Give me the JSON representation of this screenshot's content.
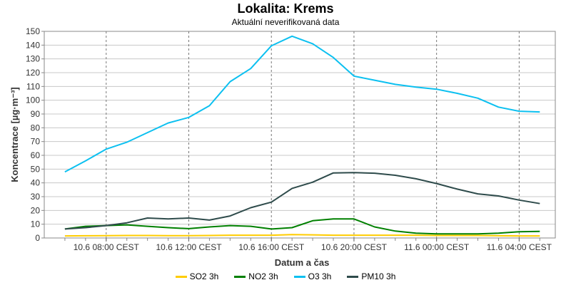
{
  "chart_data": {
    "type": "line",
    "title": "Lokalita: Krems",
    "subtitle": "Aktuální neverifikovaná data",
    "xlabel": "Datum a čas",
    "ylabel": "Koncentrace [µg·m⁻³]",
    "ylim": [
      0,
      150
    ],
    "yticks": [
      0,
      10,
      20,
      30,
      40,
      50,
      60,
      70,
      80,
      90,
      100,
      110,
      120,
      130,
      140,
      150
    ],
    "xlim": [
      "10.6 05:00",
      "11.6 05:45"
    ],
    "x": [
      "10.6 06:00",
      "10.6 07:00",
      "10.6 08:00",
      "10.6 09:00",
      "10.6 10:00",
      "10.6 11:00",
      "10.6 12:00",
      "10.6 13:00",
      "10.6 14:00",
      "10.6 15:00",
      "10.6 16:00",
      "10.6 17:00",
      "10.6 18:00",
      "10.6 19:00",
      "10.6 20:00",
      "10.6 21:00",
      "10.6 22:00",
      "10.6 23:00",
      "11.6 00:00",
      "11.6 01:00",
      "11.6 02:00",
      "11.6 03:00",
      "11.6 04:00",
      "11.6 05:00"
    ],
    "xticks": [
      {
        "x": "10.6 08:00",
        "label": "10.6 08:00 CEST"
      },
      {
        "x": "10.6 12:00",
        "label": "10.6 12:00 CEST"
      },
      {
        "x": "10.6 16:00",
        "label": "10.6 16:00 CEST"
      },
      {
        "x": "10.6 20:00",
        "label": "10.6 20:00 CEST"
      },
      {
        "x": "11.6 00:00",
        "label": "11.6 00:00 CEST"
      },
      {
        "x": "11.6 04:00",
        "label": "11.6 04:00 CEST"
      }
    ],
    "grid": true,
    "legend_placement": "bottom",
    "series": [
      {
        "name": "SO2 3h",
        "color": "#ffcc00",
        "values": [
          1.5,
          1.6,
          1.7,
          1.8,
          1.8,
          1.7,
          1.7,
          1.8,
          2.0,
          2.0,
          2.0,
          2.5,
          2.3,
          2.0,
          2.0,
          2.0,
          2.0,
          2.0,
          1.8,
          1.8,
          1.8,
          1.6,
          1.5,
          1.5
        ]
      },
      {
        "name": "NO2 3h",
        "color": "#008000",
        "values": [
          6.5,
          8.5,
          9.0,
          9.5,
          8.5,
          7.5,
          6.8,
          8.0,
          9.0,
          8.5,
          6.5,
          7.5,
          12.5,
          13.8,
          13.8,
          8.0,
          5.0,
          3.5,
          3.0,
          3.0,
          3.0,
          3.5,
          4.5,
          4.8
        ]
      },
      {
        "name": "O3 3h",
        "color": "#0cc0f0",
        "values": [
          48,
          56,
          64.5,
          69.5,
          76.5,
          83.5,
          87.5,
          96,
          113.5,
          123,
          139.5,
          146.5,
          141,
          131,
          117.5,
          114.5,
          111.5,
          109.5,
          108,
          105,
          101.5,
          95,
          92,
          91.5
        ]
      },
      {
        "name": "PM10 3h",
        "color": "#2e4b4b",
        "values": [
          6.5,
          7.5,
          9.0,
          11,
          14.5,
          13.8,
          14.5,
          13,
          16,
          22,
          26,
          36,
          40.5,
          47.2,
          47.5,
          47,
          45.5,
          43,
          39.5,
          35.5,
          32,
          30.5,
          27.5,
          25
        ]
      }
    ]
  }
}
